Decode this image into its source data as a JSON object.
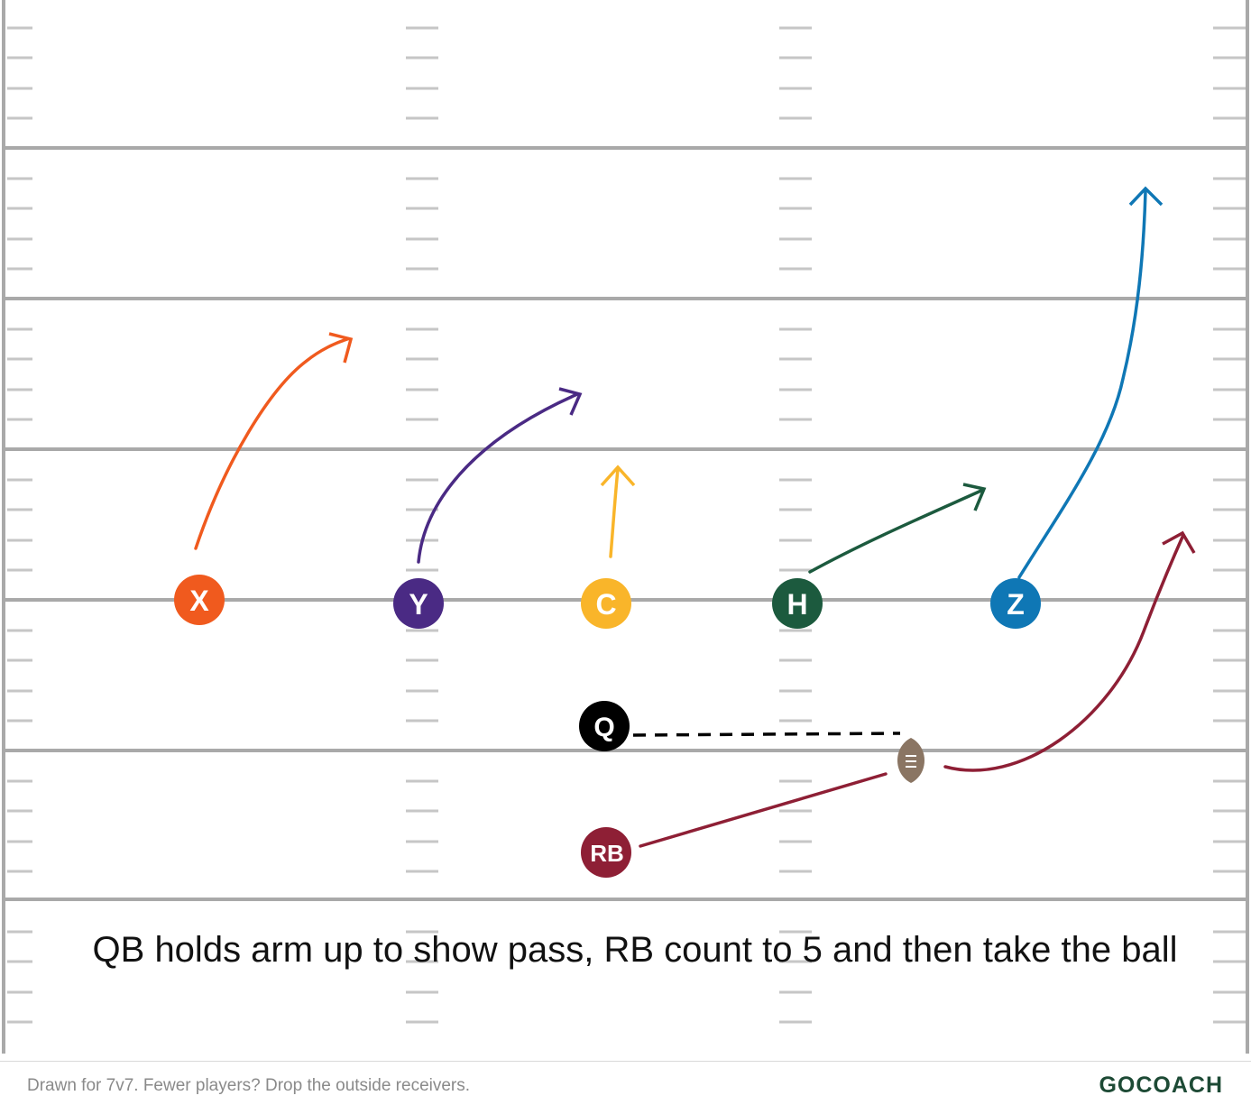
{
  "play": {
    "note": "QB holds arm up to show pass, RB count to 5 and then take the ball",
    "footer_note": "Drawn for 7v7. Fewer players? Drop the outside receivers.",
    "brand": "GOCOACH"
  },
  "players": [
    {
      "id": "x",
      "label": "X",
      "color": "#f05a1e",
      "route": "arc up-right"
    },
    {
      "id": "y",
      "label": "Y",
      "color": "#4a2a84",
      "route": "arc up-right"
    },
    {
      "id": "c",
      "label": "C",
      "color": "#f9b52a",
      "route": "straight up"
    },
    {
      "id": "h",
      "label": "H",
      "color": "#1c5a3e",
      "route": "angle up-right"
    },
    {
      "id": "z",
      "label": "Z",
      "color": "#0f77b5",
      "route": "long curve up"
    },
    {
      "id": "q",
      "label": "Q",
      "color": "#000000",
      "route": "dashed toss to ball"
    },
    {
      "id": "rb",
      "label": "RB",
      "color": "#8e1f35",
      "route": "to ball then wheel up-right"
    }
  ],
  "ball": {
    "color": "#8a7563",
    "icon": "football-icon"
  },
  "colors": {
    "field_lines": "#a9a9a9",
    "hash_marks": "#c6c6c6",
    "toss_line": "#000000"
  }
}
